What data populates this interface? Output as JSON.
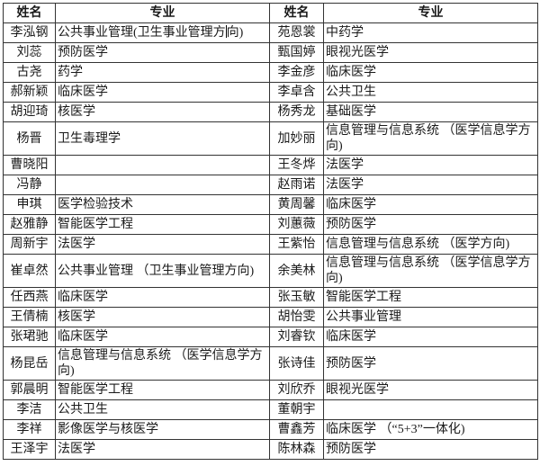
{
  "colors": {
    "border": "#333333",
    "text": "#1a1a1a",
    "background": "#ffffff"
  },
  "table": {
    "headers": [
      "姓名",
      "专业",
      "姓名",
      "专业"
    ],
    "rows": [
      {
        "name1": "李泓钢",
        "major1_parts": [
          "公共事业管理(卫生事业管理方",
          "向)"
        ],
        "name2": "苑恩裳",
        "major2": "中药学"
      },
      {
        "name1": "刘蕊",
        "major1": "预防医学",
        "name2": "甄国婷",
        "major2": "眼视光医学"
      },
      {
        "name1": "古尧",
        "major1": "药学",
        "name2": "李金彦",
        "major2": "临床医学"
      },
      {
        "name1": "郝新颖",
        "major1": "临床医学",
        "name2": "李卓含",
        "major2": "公共卫生"
      },
      {
        "name1": "胡迎琦",
        "major1": "核医学",
        "name2": "杨秀龙",
        "major2": "基础医学"
      },
      {
        "name1": "杨晋",
        "major1": "卫生毒理学",
        "name2": "加妙丽",
        "major2": "信息管理与信息系统 （医学信息学方向)"
      },
      {
        "name1": "曹晓阳",
        "major1": "",
        "name2": "王冬烨",
        "major2": "法医学"
      },
      {
        "name1": "冯静",
        "major1": "",
        "name2": "赵雨诺",
        "major2": "法医学"
      },
      {
        "name1": "申琪",
        "major1": "医学检验技术",
        "name2": "黄周馨",
        "major2": "临床医学"
      },
      {
        "name1": "赵雅静",
        "major1": "智能医学工程",
        "name2": "刘蕙薇",
        "major2": "预防医学"
      },
      {
        "name1": "周新宇",
        "major1": "法医学",
        "name2": "王紫怡",
        "major2": "信息管理与信息系统 （医学方向)"
      },
      {
        "name1": "崔卓然",
        "major1": "公共事业管理 （卫生事业管理方向)",
        "name2": "余美林",
        "major2": "信息管理与信息系统 （医学信息学方向)"
      },
      {
        "name1": "任西燕",
        "major1": "临床医学",
        "name2": "张玉敏",
        "major2": "智能医学工程"
      },
      {
        "name1": "王倩楠",
        "major1": "核医学",
        "name2": "胡怡雯",
        "major2": "公共事业管理"
      },
      {
        "name1": "张珺驰",
        "major1": "临床医学",
        "name2": "刘睿钦",
        "major2": "临床医学"
      },
      {
        "name1": "杨昆岳",
        "major1": "信息管理与信息系统 （医学信息学方向)",
        "name2": "张诗佳",
        "major2": "预防医学"
      },
      {
        "name1": "郭晨明",
        "major1": "智能医学工程",
        "name2": "刘欣乔",
        "major2": "眼视光医学"
      },
      {
        "name1": "李洁",
        "major1": "公共卫生",
        "name2": "董朝宇",
        "major2": ""
      },
      {
        "name1": "李祥",
        "major1": "影像医学与核医学",
        "name2": "曹鑫芳",
        "major2": "临床医学 （“5+3”一体化)"
      },
      {
        "name1": "王泽宇",
        "major1": "法医学",
        "name2": "陈林森",
        "major2": "预防医学"
      }
    ]
  }
}
